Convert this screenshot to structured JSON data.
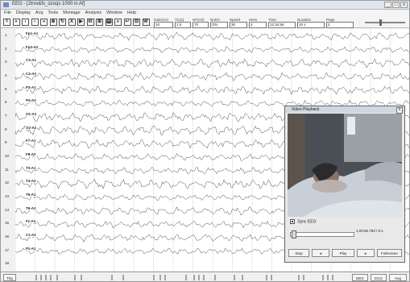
{
  "window": {
    "title": "EEG - [Jtrvv&fs_ozoqs 1000 in Af]",
    "controls": [
      "_",
      "□",
      "x"
    ]
  },
  "menu": [
    "File",
    "Display",
    "Acq",
    "Tools",
    "Montage",
    "Analysis",
    "Window",
    "Help"
  ],
  "toolbar": {
    "buttons": [
      "=",
      "«",
      "‹",
      "›",
      "»",
      "⊕",
      "↻",
      "X",
      "▶",
      "III",
      "⊞",
      "🖨",
      "⌕",
      "↩",
      "⊟",
      "W"
    ],
    "fields": [
      {
        "label": "Gain(uV)",
        "value": "10"
      },
      {
        "label": "TC(s)",
        "value": "1.5"
      },
      {
        "label": "HF(Hz)",
        "value": "70"
      },
      {
        "label": "Notch",
        "value": "ON"
      },
      {
        "label": "Speed",
        "value": "30"
      },
      {
        "label": "Sens",
        "value": "4"
      },
      {
        "label": "Time",
        "value": "12:34:56"
      },
      {
        "label": "Duration",
        "value": "10 s"
      },
      {
        "label": "Page",
        "value": "2"
      }
    ]
  },
  "channels": [
    {
      "num": "1",
      "label": "Fp1-A1"
    },
    {
      "num": "2",
      "label": "Fp2-A2"
    },
    {
      "num": "3",
      "label": "C3-A1"
    },
    {
      "num": "4",
      "label": "C4-A2"
    },
    {
      "num": "5",
      "label": "P3-A1"
    },
    {
      "num": "6",
      "label": "P4-A2"
    },
    {
      "num": "7",
      "label": "O1-A1"
    },
    {
      "num": "8",
      "label": "O2-A2"
    },
    {
      "num": "9",
      "label": "F7-A1"
    },
    {
      "num": "10",
      "label": "F8-A2"
    },
    {
      "num": "11",
      "label": "T3-A1"
    },
    {
      "num": "12",
      "label": "T4-A2"
    },
    {
      "num": "13",
      "label": "T5-A1"
    },
    {
      "num": "14",
      "label": "T6-A2"
    },
    {
      "num": "15",
      "label": "Fz-A1"
    },
    {
      "num": "16",
      "label": "Cz-A2"
    },
    {
      "num": "17",
      "label": "Pz-A1"
    },
    {
      "num": "18",
      "label": ""
    }
  ],
  "video": {
    "title": "Video Playback",
    "close": "x",
    "sync_label": "Sync EEG",
    "time": "1:00:56.783 / 6:1",
    "buttons": [
      "Stop",
      "◂",
      "Play",
      "▸",
      "Fullscreen"
    ]
  },
  "statusbar": {
    "left_label": "Trig",
    "buttons": [
      "EEG",
      "ECG",
      "Avg"
    ]
  }
}
